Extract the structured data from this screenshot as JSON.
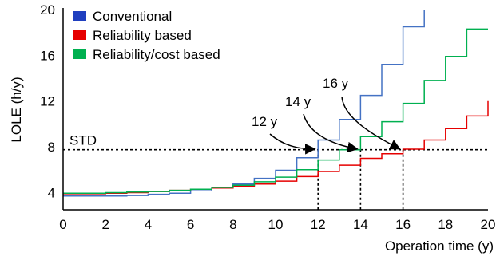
{
  "chart_data": {
    "type": "line",
    "step": true,
    "title": "",
    "xlabel": "Operation time (y)",
    "ylabel": "LOLE (h/y)",
    "xlim": [
      0,
      20
    ],
    "ylim": [
      2.5,
      20
    ],
    "xticks": [
      0,
      2,
      4,
      6,
      8,
      10,
      12,
      14,
      16,
      18,
      20
    ],
    "yticks": [
      4,
      8,
      12,
      16,
      20
    ],
    "grid": false,
    "legend_position": "top-left",
    "series": [
      {
        "name": "Conventional",
        "color": "#4472C4",
        "legend_color": "#1F3FBF",
        "x": [
          0,
          1,
          2,
          3,
          4,
          5,
          6,
          7,
          8,
          9,
          10,
          11,
          12,
          13,
          14,
          15,
          16,
          17
        ],
        "y": [
          3.7,
          3.7,
          3.7,
          3.75,
          3.85,
          3.95,
          4.15,
          4.4,
          4.75,
          5.25,
          5.95,
          7.05,
          8.6,
          10.4,
          12.5,
          15.2,
          18.5,
          20
        ]
      },
      {
        "name": "Reliability based",
        "color": "#E60000",
        "legend_color": "#E60000",
        "x": [
          0,
          1,
          2,
          3,
          4,
          5,
          6,
          7,
          8,
          9,
          10,
          11,
          12,
          13,
          14,
          15,
          16,
          17,
          18,
          19,
          20
        ],
        "y": [
          3.9,
          3.9,
          3.95,
          4.0,
          4.1,
          4.2,
          4.3,
          4.4,
          4.55,
          4.75,
          5.0,
          5.4,
          5.85,
          6.4,
          7.0,
          7.4,
          7.8,
          8.6,
          9.6,
          10.7,
          12.0
        ]
      },
      {
        "name": "Reliability/cost based",
        "color": "#00B050",
        "legend_color": "#00B050",
        "x": [
          0,
          1,
          2,
          3,
          4,
          5,
          6,
          7,
          8,
          9,
          10,
          11,
          12,
          13,
          14,
          15,
          16,
          17,
          18,
          19,
          20
        ],
        "y": [
          3.95,
          3.95,
          4.0,
          4.05,
          4.1,
          4.2,
          4.3,
          4.45,
          4.65,
          4.95,
          5.35,
          6.0,
          6.85,
          7.75,
          8.9,
          10.2,
          11.8,
          13.8,
          15.9,
          18.3,
          18.3
        ]
      }
    ],
    "reference_line": {
      "label": "STD",
      "y": 7.75
    },
    "annotations": [
      {
        "label": "12 y",
        "x": 12,
        "y": 7.75
      },
      {
        "label": "14 y",
        "x": 14,
        "y": 7.75
      },
      {
        "label": "16 y",
        "x": 16,
        "y": 7.75
      }
    ]
  }
}
